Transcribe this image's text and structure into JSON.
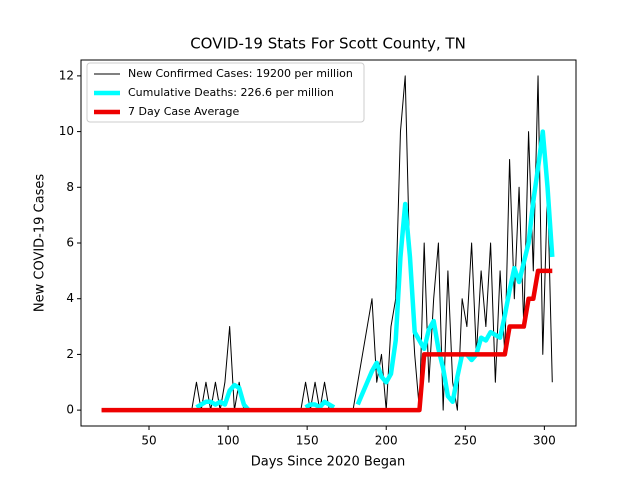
{
  "chart_data": {
    "type": "line",
    "title": "COVID-19 Stats For Scott County, TN",
    "x_label": "Days Since 2020 Began",
    "y_label": "New COVID-19 Cases",
    "x": [
      20,
      23,
      26,
      29,
      32,
      35,
      38,
      41,
      44,
      47,
      50,
      53,
      56,
      59,
      62,
      65,
      68,
      71,
      74,
      77,
      80,
      83,
      86,
      89,
      92,
      95,
      98,
      101,
      104,
      107,
      110,
      113,
      116,
      119,
      122,
      125,
      128,
      131,
      134,
      137,
      140,
      143,
      146,
      149,
      152,
      155,
      158,
      161,
      164,
      167,
      170,
      173,
      176,
      179,
      182,
      185,
      188,
      191,
      194,
      197,
      200,
      203,
      206,
      209,
      212,
      215,
      218,
      221,
      224,
      227,
      230,
      233,
      236,
      239,
      242,
      245,
      248,
      251,
      254,
      257,
      260,
      263,
      266,
      269,
      272,
      275,
      278,
      281,
      284,
      287,
      290,
      293,
      296,
      299,
      302,
      305
    ],
    "series": [
      {
        "name": "New Confirmed Cases: 19200 per million",
        "color": "#000000",
        "width": 1,
        "values": [
          0,
          0,
          0,
          0,
          0,
          0,
          0,
          0,
          0,
          0,
          0,
          0,
          0,
          0,
          0,
          0,
          0,
          0,
          0,
          0,
          1,
          0,
          1,
          0,
          1,
          0,
          1,
          3,
          0,
          1,
          0,
          0,
          0,
          0,
          0,
          0,
          0,
          0,
          0,
          0,
          0,
          0,
          0,
          1,
          0,
          1,
          0,
          1,
          0,
          0,
          0,
          0,
          0,
          0,
          1,
          2,
          3,
          4,
          1,
          2,
          0,
          3,
          4,
          10,
          12,
          5,
          2,
          0,
          6,
          1,
          4,
          6,
          0,
          5,
          1,
          0,
          4,
          3,
          6,
          2,
          5,
          3,
          6,
          1,
          5,
          2,
          9,
          4,
          8,
          3,
          10,
          5,
          12,
          2,
          8,
          1
        ]
      },
      {
        "name": "Cumulative Deaths: 226.6 per million",
        "color": "#00ffff",
        "width": 4.5,
        "values": [
          null,
          null,
          null,
          null,
          null,
          null,
          null,
          null,
          null,
          null,
          null,
          null,
          null,
          null,
          null,
          null,
          null,
          null,
          null,
          null,
          0.1,
          0.2,
          0.3,
          0.3,
          0.2,
          0.3,
          0.2,
          0.7,
          0.9,
          0.8,
          0.2,
          0,
          null,
          null,
          null,
          null,
          null,
          null,
          null,
          null,
          null,
          null,
          null,
          0.1,
          0.2,
          0.2,
          0.1,
          0.3,
          0.2,
          0.1,
          null,
          null,
          null,
          null,
          0.2,
          0.6,
          1.0,
          1.4,
          1.7,
          1.2,
          1.0,
          1.3,
          2.5,
          5.5,
          7.4,
          5.5,
          2.8,
          2.5,
          2.2,
          2.9,
          3.2,
          2.2,
          1.5,
          0.5,
          0.3,
          1.2,
          2.0,
          2.0,
          1.8,
          2.0,
          2.6,
          2.5,
          2.8,
          2.7,
          2.6,
          3.4,
          4.3,
          5.1,
          4.6,
          5.3,
          6.0,
          7.5,
          8.7,
          10.0,
          8.0,
          5.5
        ]
      },
      {
        "name": "7 Day Case Average",
        "color": "#ee0000",
        "width": 4.5,
        "values": [
          0,
          0,
          0,
          0,
          0,
          0,
          0,
          0,
          0,
          0,
          0,
          0,
          0,
          0,
          0,
          0,
          0,
          0,
          0,
          0,
          0,
          0,
          0,
          0,
          0,
          0,
          0,
          0,
          0,
          0,
          0,
          0,
          0,
          0,
          0,
          0,
          0,
          0,
          0,
          0,
          0,
          0,
          0,
          0,
          0,
          0,
          0,
          0,
          0,
          0,
          0,
          0,
          0,
          0,
          0,
          0,
          0,
          0,
          0,
          0,
          0,
          0,
          0,
          0,
          0,
          0,
          0,
          0,
          2,
          2,
          2,
          2,
          2,
          2,
          2,
          2,
          2,
          2,
          2,
          2,
          2,
          2,
          2,
          2,
          2,
          2,
          3,
          3,
          3,
          3,
          4,
          4,
          5,
          5,
          5,
          5
        ]
      }
    ],
    "xlim": [
      7,
      320
    ],
    "ylim": [
      -0.57,
      12.57
    ],
    "xticks": [
      50,
      100,
      150,
      200,
      250,
      300
    ],
    "yticks": [
      0,
      2,
      4,
      6,
      8,
      10,
      12
    ],
    "legend": "upper left"
  }
}
